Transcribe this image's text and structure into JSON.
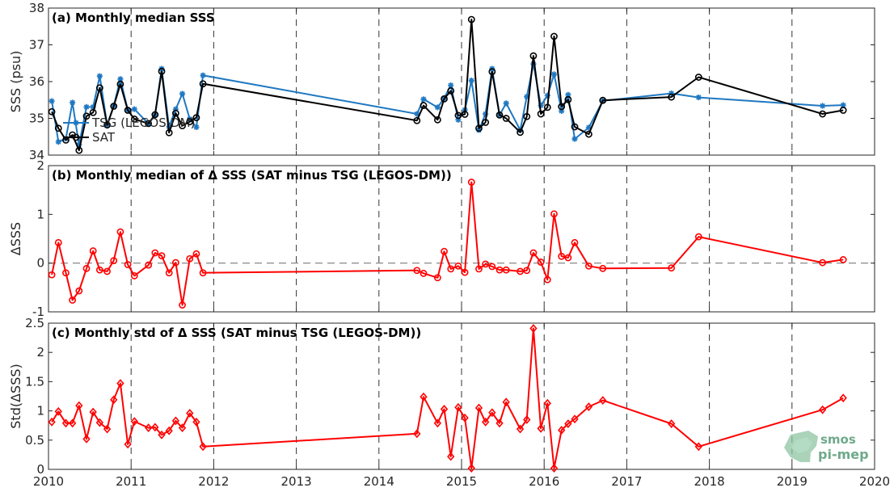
{
  "chart_data": [
    {
      "type": "line",
      "title": "(a) Monthly median SSS",
      "ylabel": "SSS (psu)",
      "xlim": [
        2010,
        2020
      ],
      "ylim": [
        34,
        38
      ],
      "xticks": [
        "2010",
        "2011",
        "2012",
        "2013",
        "2014",
        "2015",
        "2016",
        "2017",
        "2018",
        "2019",
        "2020"
      ],
      "yticks": [
        "34",
        "35",
        "36",
        "37",
        "38"
      ],
      "legend": {
        "placement": "bottom-left"
      },
      "series": [
        {
          "name": "TSG (LEGOS-DM)",
          "color": "#1f78c1",
          "marker": "asterisk",
          "x": [
            2010.04,
            2010.12,
            2010.21,
            2010.29,
            2010.37,
            2010.46,
            2010.54,
            2010.62,
            2010.71,
            2010.79,
            2010.87,
            2010.96,
            2011.04,
            2011.21,
            2011.29,
            2011.37,
            2011.46,
            2011.54,
            2011.62,
            2011.71,
            2011.79,
            2011.87,
            2014.46,
            2014.54,
            2014.71,
            2014.79,
            2014.87,
            2014.96,
            2015.04,
            2015.12,
            2015.21,
            2015.29,
            2015.37,
            2015.46,
            2015.54,
            2015.71,
            2015.79,
            2015.87,
            2015.96,
            2016.04,
            2016.12,
            2016.21,
            2016.29,
            2016.37,
            2016.54,
            2016.71,
            2017.54,
            2017.87,
            2019.37,
            2019.62
          ],
          "y": [
            35.47,
            34.36,
            34.45,
            35.43,
            34.28,
            35.31,
            35.31,
            36.15,
            34.82,
            35.34,
            36.07,
            35.23,
            35.25,
            34.85,
            35.09,
            36.35,
            34.77,
            35.25,
            35.67,
            34.98,
            34.76,
            36.17,
            35.12,
            35.52,
            35.3,
            35.55,
            35.9,
            34.96,
            35.23,
            36.03,
            34.68,
            35.12,
            36.35,
            35.09,
            35.41,
            34.68,
            35.59,
            36.48,
            35.35,
            35.62,
            36.2,
            35.2,
            35.64,
            34.44,
            34.75,
            35.48,
            35.68,
            35.57,
            35.34,
            35.36
          ]
        },
        {
          "name": "SAT",
          "color": "#000000",
          "marker": "circle",
          "x": [
            2010.04,
            2010.12,
            2010.21,
            2010.29,
            2010.37,
            2010.46,
            2010.54,
            2010.62,
            2010.71,
            2010.79,
            2010.87,
            2010.96,
            2011.04,
            2011.21,
            2011.29,
            2011.37,
            2011.46,
            2011.54,
            2011.62,
            2011.71,
            2011.79,
            2011.87,
            2014.46,
            2014.54,
            2014.71,
            2014.79,
            2014.87,
            2014.96,
            2015.04,
            2015.12,
            2015.21,
            2015.29,
            2015.37,
            2015.46,
            2015.54,
            2015.71,
            2015.79,
            2015.87,
            2015.96,
            2016.04,
            2016.12,
            2016.21,
            2016.29,
            2016.37,
            2016.54,
            2016.71,
            2017.54,
            2017.87,
            2019.37,
            2019.62
          ],
          "y": [
            35.18,
            34.73,
            34.41,
            34.55,
            34.13,
            35.06,
            35.16,
            35.83,
            34.82,
            35.33,
            35.93,
            35.22,
            34.98,
            34.86,
            35.1,
            36.28,
            34.61,
            35.14,
            34.8,
            34.91,
            35.02,
            35.94,
            34.94,
            35.35,
            34.96,
            35.53,
            35.75,
            35.08,
            35.11,
            37.69,
            34.73,
            34.89,
            36.27,
            35.09,
            35.0,
            34.62,
            35.05,
            36.7,
            35.12,
            35.3,
            37.23,
            35.32,
            35.51,
            34.77,
            34.57,
            35.49,
            35.58,
            36.12,
            35.12,
            35.22
          ]
        }
      ]
    },
    {
      "type": "line",
      "title": "(b) Monthly median of Δ SSS (SAT minus TSG (LEGOS-DM))",
      "ylabel": "ΔSSS",
      "xlim": [
        2010,
        2020
      ],
      "ylim": [
        -1,
        2
      ],
      "xticks": [
        "2010",
        "2011",
        "2012",
        "2013",
        "2014",
        "2015",
        "2016",
        "2017",
        "2018",
        "2019",
        "2020"
      ],
      "yticks": [
        "-1",
        "0",
        "1",
        "2"
      ],
      "zero_line": true,
      "series": [
        {
          "color": "#ff0000",
          "marker": "circle",
          "x": [
            2010.04,
            2010.12,
            2010.21,
            2010.29,
            2010.37,
            2010.46,
            2010.54,
            2010.62,
            2010.71,
            2010.79,
            2010.87,
            2010.96,
            2011.04,
            2011.21,
            2011.29,
            2011.37,
            2011.46,
            2011.54,
            2011.62,
            2011.71,
            2011.79,
            2011.87,
            2014.46,
            2014.54,
            2014.71,
            2014.79,
            2014.87,
            2014.96,
            2015.04,
            2015.12,
            2015.21,
            2015.29,
            2015.37,
            2015.46,
            2015.54,
            2015.71,
            2015.79,
            2015.87,
            2015.96,
            2016.04,
            2016.12,
            2016.21,
            2016.29,
            2016.37,
            2016.54,
            2016.71,
            2017.54,
            2017.87,
            2019.37,
            2019.62
          ],
          "y": [
            -0.24,
            0.42,
            -0.2,
            -0.76,
            -0.57,
            -0.11,
            0.25,
            -0.14,
            -0.17,
            0.05,
            0.64,
            -0.03,
            -0.26,
            -0.04,
            0.21,
            0.15,
            -0.2,
            0.01,
            -0.86,
            0.09,
            0.19,
            -0.2,
            -0.15,
            -0.21,
            -0.3,
            0.24,
            -0.12,
            -0.06,
            -0.19,
            1.66,
            -0.12,
            -0.02,
            -0.07,
            -0.14,
            -0.14,
            -0.17,
            -0.15,
            0.21,
            0.02,
            -0.34,
            1.01,
            0.14,
            0.11,
            0.42,
            -0.06,
            -0.11,
            -0.1,
            0.54,
            0.01,
            0.07
          ]
        }
      ]
    },
    {
      "type": "line",
      "title": "(c) Monthly std of Δ SSS (SAT minus TSG (LEGOS-DM))",
      "ylabel": "Std(ΔSSS)",
      "xlim": [
        2010,
        2020
      ],
      "ylim": [
        0,
        2.5
      ],
      "xticks": [
        "2010",
        "2011",
        "2012",
        "2013",
        "2014",
        "2015",
        "2016",
        "2017",
        "2018",
        "2019",
        "2020"
      ],
      "yticks": [
        "0",
        "0.5",
        "1",
        "1.5",
        "2",
        "2.5"
      ],
      "series": [
        {
          "color": "#ff0000",
          "marker": "diamond",
          "x": [
            2010.04,
            2010.12,
            2010.21,
            2010.29,
            2010.37,
            2010.46,
            2010.54,
            2010.62,
            2010.71,
            2010.79,
            2010.87,
            2010.96,
            2011.04,
            2011.21,
            2011.29,
            2011.37,
            2011.46,
            2011.54,
            2011.62,
            2011.71,
            2011.79,
            2011.87,
            2014.46,
            2014.54,
            2014.71,
            2014.79,
            2014.87,
            2014.96,
            2015.04,
            2015.12,
            2015.21,
            2015.29,
            2015.37,
            2015.46,
            2015.54,
            2015.71,
            2015.79,
            2015.87,
            2015.96,
            2016.04,
            2016.12,
            2016.21,
            2016.29,
            2016.37,
            2016.54,
            2016.71,
            2017.54,
            2017.87,
            2019.37,
            2019.62
          ],
          "y": [
            0.81,
            0.99,
            0.79,
            0.79,
            1.09,
            0.52,
            0.98,
            0.8,
            0.69,
            1.19,
            1.47,
            0.43,
            0.82,
            0.71,
            0.72,
            0.59,
            0.66,
            0.83,
            0.71,
            0.96,
            0.81,
            0.39,
            0.61,
            1.24,
            0.79,
            1.03,
            0.22,
            1.06,
            0.88,
            0.02,
            1.05,
            0.81,
            0.97,
            0.79,
            1.15,
            0.69,
            0.85,
            2.41,
            0.7,
            1.13,
            0.02,
            0.67,
            0.78,
            0.86,
            1.07,
            1.18,
            0.78,
            0.39,
            1.02,
            1.22
          ]
        }
      ]
    }
  ],
  "logo": {
    "line1": "smos",
    "line2": "pi-mep"
  }
}
